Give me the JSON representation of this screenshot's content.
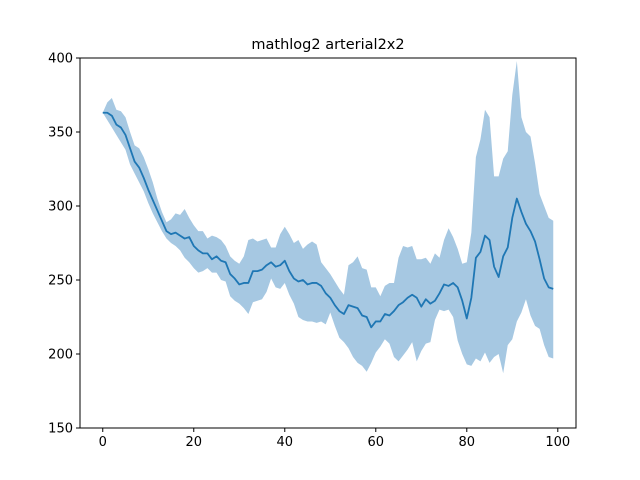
{
  "chart_data": {
    "type": "line",
    "title": "mathlog2 arterial2x2",
    "xlabel": "",
    "ylabel": "",
    "xlim": [
      -5,
      104
    ],
    "ylim": [
      150,
      400
    ],
    "xticks": [
      0,
      20,
      40,
      60,
      80,
      100
    ],
    "yticks": [
      150,
      200,
      250,
      300,
      350,
      400
    ],
    "xtick_labels": [
      "0",
      "20",
      "40",
      "60",
      "80",
      "100"
    ],
    "ytick_labels": [
      "150",
      "200",
      "250",
      "300",
      "350",
      "400"
    ],
    "grid": false,
    "colors": {
      "line": "#1f77b4",
      "band": "#a6c8e2"
    },
    "series": [
      {
        "x": [
          0,
          1,
          2,
          3,
          4,
          5,
          6,
          7,
          8,
          9,
          10,
          11,
          12,
          13,
          14,
          15,
          16,
          17,
          18,
          19,
          20,
          21,
          22,
          23,
          24,
          25,
          26,
          27,
          28,
          29,
          30,
          31,
          32,
          33,
          34,
          35,
          36,
          37,
          38,
          39,
          40,
          41,
          42,
          43,
          44,
          45,
          46,
          47,
          48,
          49,
          50,
          51,
          52,
          53,
          54,
          55,
          56,
          57,
          58,
          59,
          60,
          61,
          62,
          63,
          64,
          65,
          66,
          67,
          68,
          69,
          70,
          71,
          72,
          73,
          74,
          75,
          76,
          77,
          78,
          79,
          80,
          81,
          82,
          83,
          84,
          85,
          86,
          87,
          88,
          89,
          90,
          91,
          92,
          93,
          94,
          95,
          96,
          97,
          98,
          99
        ],
        "mean": [
          363,
          363,
          361,
          355,
          353,
          348,
          339,
          330,
          326,
          319,
          311,
          304,
          297,
          290,
          283,
          281,
          282,
          280,
          278,
          279,
          273,
          270,
          268,
          268,
          264,
          266,
          263,
          262,
          254,
          251,
          247,
          248,
          248,
          256,
          256,
          257,
          260,
          262,
          259,
          260,
          263,
          256,
          251,
          249,
          250,
          247,
          248,
          248,
          246,
          241,
          238,
          233,
          229,
          227,
          233,
          232,
          231,
          226,
          225,
          218,
          222,
          222,
          227,
          226,
          229,
          233,
          235,
          238,
          240,
          238,
          232,
          237,
          234,
          236,
          241,
          247,
          246,
          248,
          245,
          236,
          224,
          238,
          265,
          269,
          280,
          277,
          259,
          252,
          266,
          272,
          292,
          305,
          296,
          288,
          283,
          276,
          264,
          251,
          245,
          244
        ],
        "upper": [
          363,
          370,
          373,
          365,
          364,
          360,
          350,
          341,
          339,
          333,
          325,
          316,
          305,
          296,
          289,
          291,
          295,
          294,
          298,
          292,
          287,
          283,
          283,
          278,
          280,
          279,
          277,
          273,
          266,
          263,
          261,
          266,
          277,
          278,
          276,
          277,
          278,
          272,
          272,
          281,
          286,
          281,
          275,
          277,
          271,
          274,
          276,
          274,
          262,
          258,
          254,
          249,
          244,
          240,
          260,
          262,
          266,
          258,
          257,
          245,
          245,
          239,
          246,
          248,
          248,
          265,
          273,
          272,
          273,
          264,
          264,
          265,
          261,
          268,
          265,
          277,
          285,
          279,
          271,
          261,
          262,
          282,
          333,
          345,
          365,
          360,
          320,
          320,
          332,
          337,
          375,
          398,
          360,
          350,
          347,
          329,
          308,
          300,
          292,
          290
        ],
        "lower": [
          363,
          358,
          353,
          348,
          343,
          338,
          328,
          322,
          316,
          310,
          302,
          295,
          289,
          283,
          278,
          275,
          273,
          270,
          265,
          262,
          258,
          255,
          256,
          258,
          255,
          255,
          250,
          249,
          239,
          236,
          234,
          231,
          227,
          235,
          236,
          237,
          242,
          251,
          245,
          244,
          248,
          240,
          234,
          225,
          223,
          222,
          222,
          221,
          222,
          220,
          228,
          219,
          211,
          208,
          204,
          198,
          194,
          192,
          188,
          194,
          201,
          205,
          210,
          207,
          198,
          195,
          199,
          203,
          208,
          195,
          202,
          207,
          208,
          223,
          230,
          229,
          230,
          225,
          209,
          200,
          193,
          192,
          197,
          195,
          201,
          194,
          198,
          200,
          187,
          206,
          210,
          222,
          228,
          237,
          226,
          219,
          217,
          206,
          198,
          197
        ]
      }
    ]
  }
}
